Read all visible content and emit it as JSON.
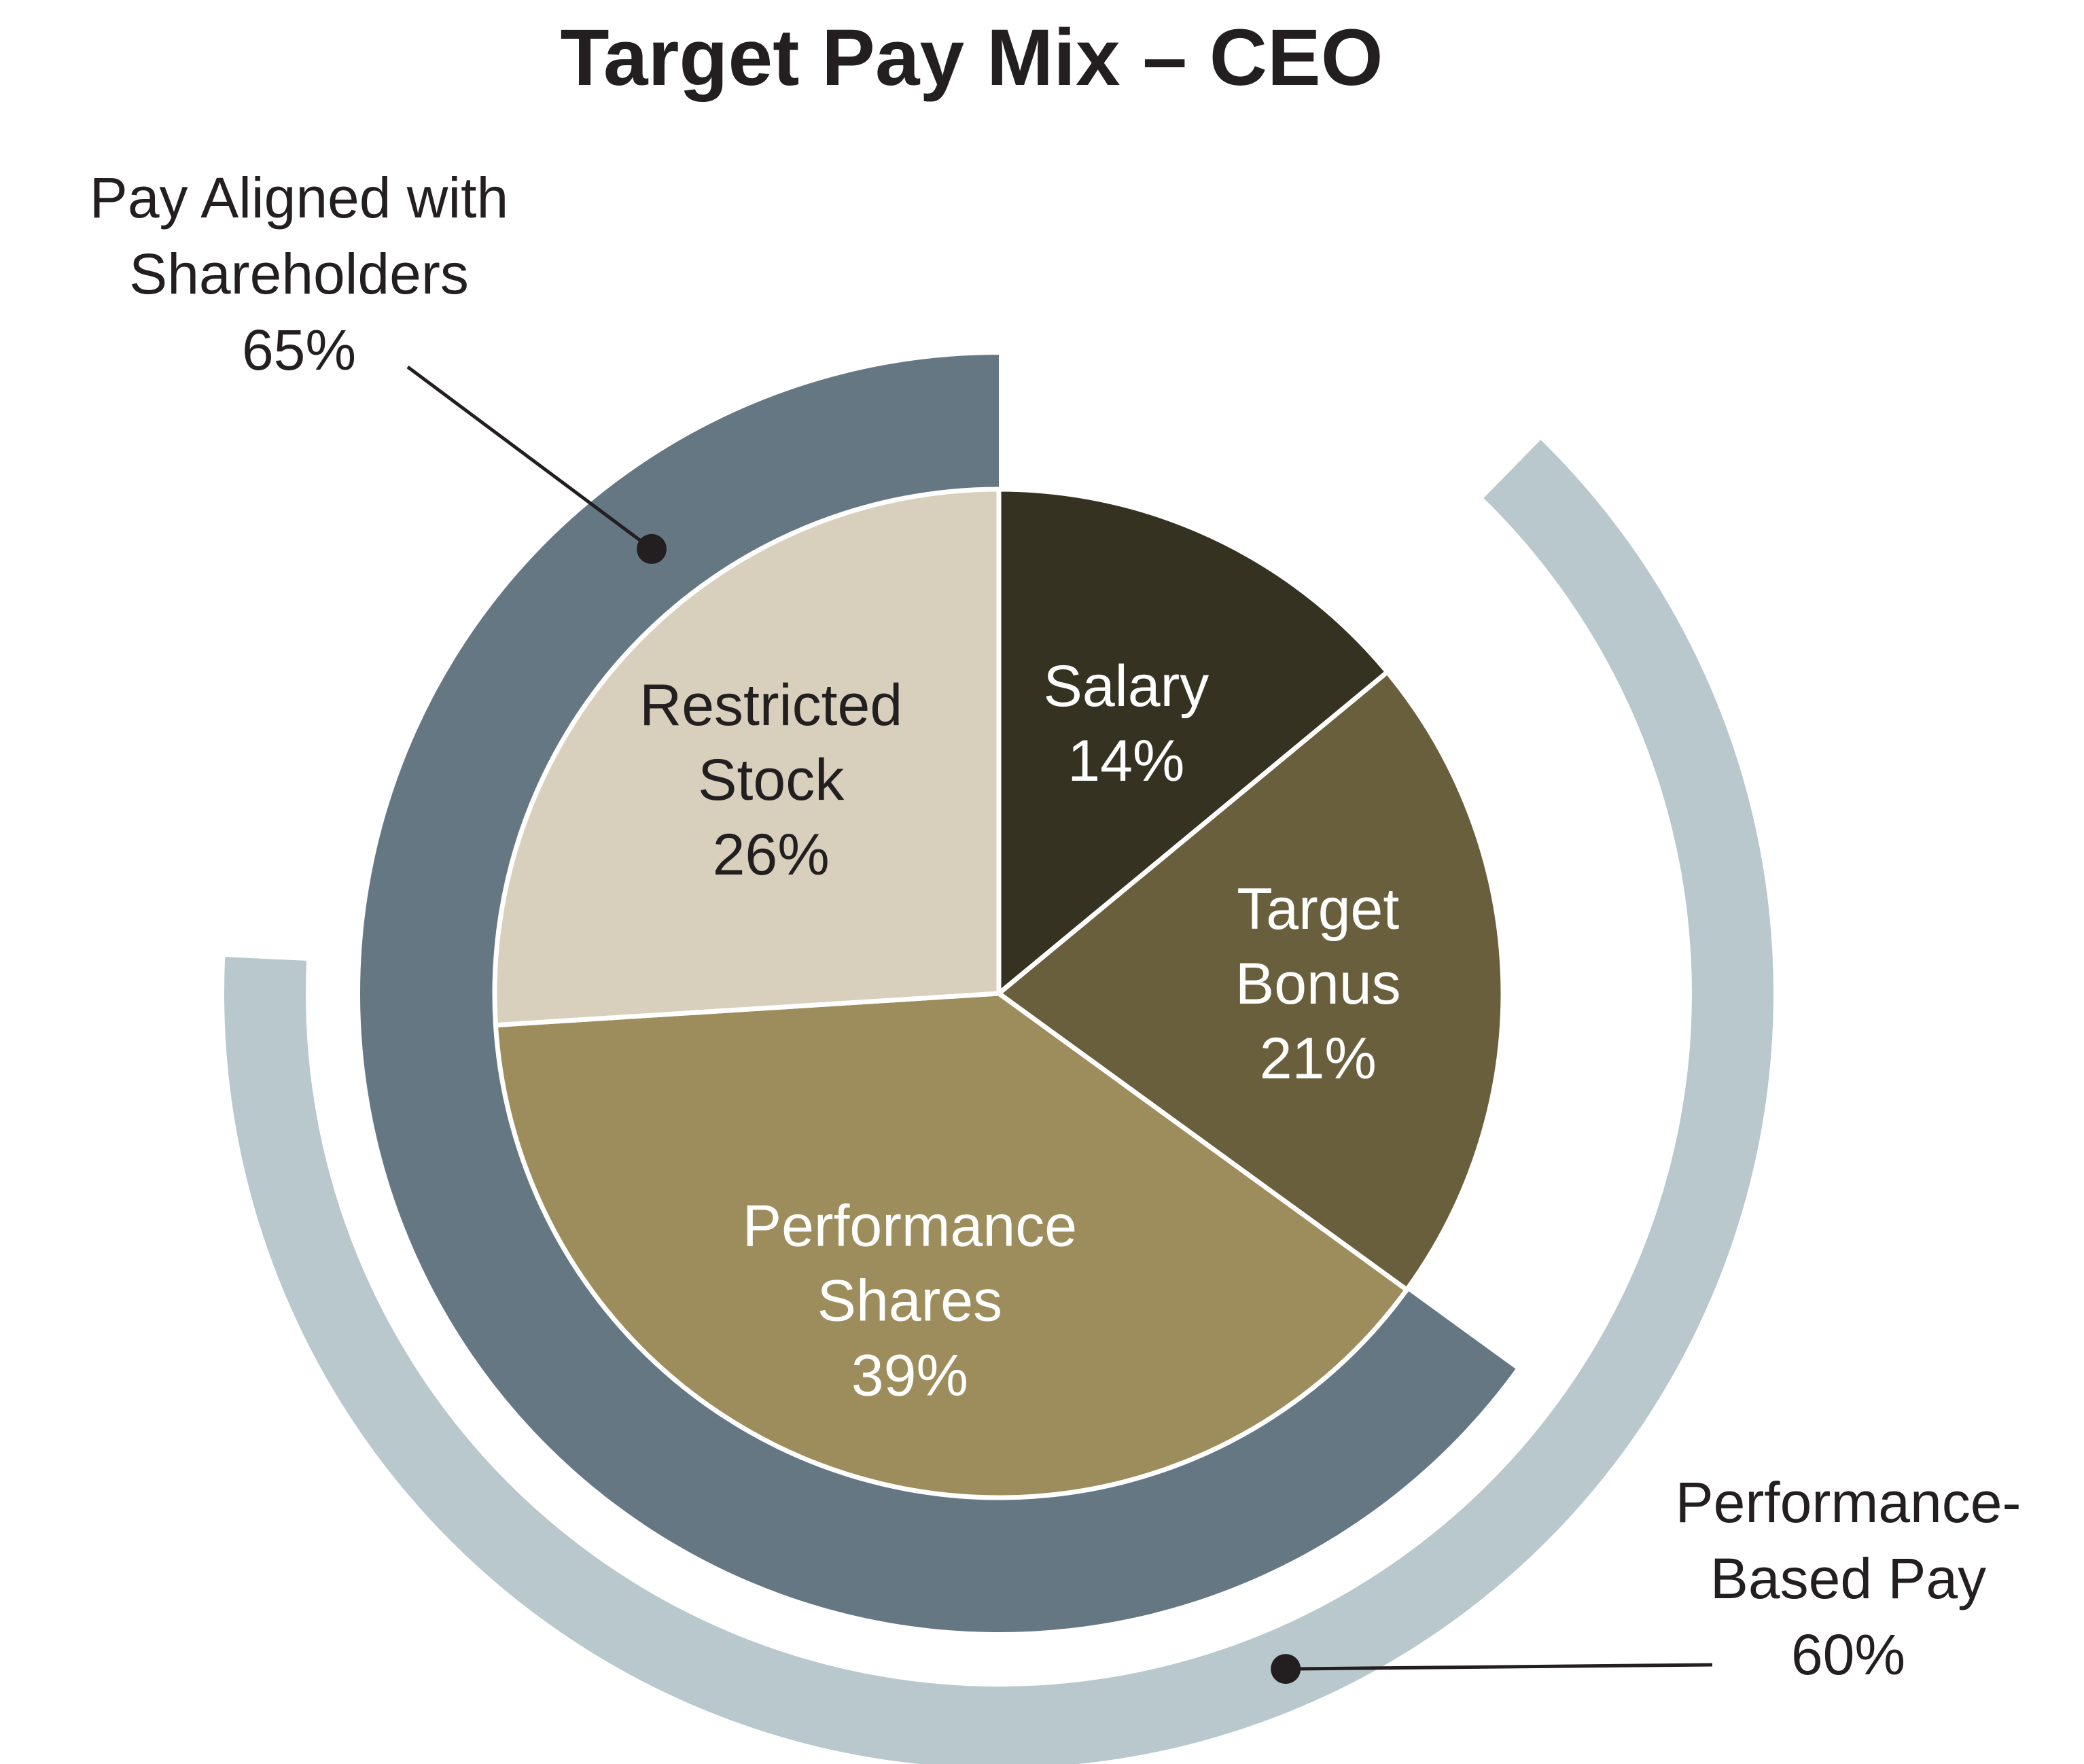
{
  "chart_data": {
    "type": "pie",
    "title": "Target Pay Mix – CEO",
    "slices": [
      {
        "name": "Salary",
        "label_lines": [
          "Salary",
          "14%"
        ],
        "value": 14,
        "color": "#363222",
        "text_color": "#ffffff"
      },
      {
        "name": "Target Bonus",
        "label_lines": [
          "Target",
          "Bonus",
          "21%"
        ],
        "value": 21,
        "color": "#6a5f3d",
        "text_color": "#ffffff"
      },
      {
        "name": "Performance Shares",
        "label_lines": [
          "Performance",
          "Shares",
          "39%"
        ],
        "value": 39,
        "color": "#9e8d5c",
        "text_color": "#ffffff"
      },
      {
        "name": "Restricted Stock",
        "label_lines": [
          "Restricted",
          "Stock",
          "26%"
        ],
        "value": 26,
        "color": "#d8d0bc",
        "text_color": "#231f20"
      }
    ],
    "outer_rings": [
      {
        "name": "Pay Aligned with Shareholders",
        "label_lines": [
          "Pay Aligned with",
          "Shareholders",
          "65%"
        ],
        "value": 65,
        "includes": [
          "Performance Shares",
          "Restricted Stock"
        ],
        "color": "#667784"
      },
      {
        "name": "Performance-Based Pay",
        "label_lines": [
          "Performance-",
          "Based Pay",
          "60%"
        ],
        "value": 60,
        "includes": [
          "Target Bonus",
          "Performance Shares"
        ],
        "color": "#b8c8cd"
      }
    ],
    "legend": "none",
    "grid": false
  }
}
